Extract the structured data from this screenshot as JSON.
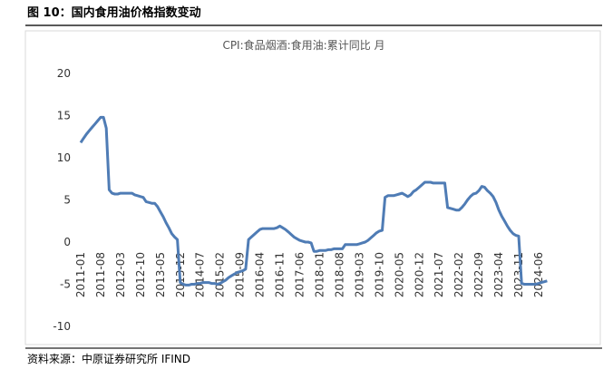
{
  "header": {
    "title": "图 10：国内食用油价格指数变动"
  },
  "source": "资料来源：中原证券研究所 IFIND",
  "chart_data": {
    "type": "line",
    "title": "CPI:食品烟酒:食用油:累计同比 月",
    "categories": [
      "2011-01",
      null,
      null,
      null,
      null,
      null,
      null,
      "2011-08",
      null,
      null,
      null,
      null,
      null,
      null,
      "2012-03",
      null,
      null,
      null,
      null,
      null,
      null,
      "2012-10",
      null,
      null,
      null,
      null,
      null,
      null,
      "2013-05",
      null,
      null,
      null,
      null,
      null,
      null,
      "2013-12",
      null,
      null,
      null,
      null,
      null,
      null,
      "2014-07",
      null,
      null,
      null,
      null,
      null,
      null,
      "2015-02",
      null,
      null,
      null,
      null,
      null,
      null,
      "2015-09",
      null,
      null,
      null,
      null,
      null,
      null,
      "2016-04",
      null,
      null,
      null,
      null,
      null,
      null,
      "2016-11",
      null,
      null,
      null,
      null,
      null,
      null,
      "2017-06",
      null,
      null,
      null,
      null,
      null,
      null,
      "2018-01",
      null,
      null,
      null,
      null,
      null,
      null,
      "2018-08",
      null,
      null,
      null,
      null,
      null,
      null,
      "2019-03",
      null,
      null,
      null,
      null,
      null,
      null,
      "2019-10",
      null,
      null,
      null,
      null,
      null,
      null,
      "2020-05",
      null,
      null,
      null,
      null,
      null,
      null,
      "2020-12",
      null,
      null,
      null,
      null,
      null,
      null,
      "2021-07",
      null,
      null,
      null,
      null,
      null,
      null,
      "2022-02",
      null,
      null,
      null,
      null,
      null,
      null,
      "2022-09",
      null,
      null,
      null,
      null,
      null,
      null,
      "2023-04",
      null,
      null,
      null,
      null,
      null,
      null,
      "2023-11",
      null,
      null,
      null,
      null,
      null,
      null,
      "2024-06",
      null,
      null,
      null
    ],
    "series": [
      {
        "color": "#4f7cb5",
        "values": [
          11.8,
          12.3,
          12.8,
          13.2,
          13.6,
          14.0,
          14.4,
          14.8,
          14.8,
          13.5,
          6.2,
          5.8,
          5.7,
          5.7,
          5.8,
          5.8,
          5.8,
          5.8,
          5.8,
          5.6,
          5.5,
          5.4,
          5.3,
          4.8,
          4.7,
          4.6,
          4.6,
          4.2,
          3.6,
          3.0,
          2.3,
          1.7,
          1.0,
          0.6,
          0.3,
          -4.8,
          -5.0,
          -5.1,
          -5.1,
          -5.0,
          -5.0,
          -4.9,
          -4.9,
          -4.8,
          -4.8,
          -4.8,
          -4.9,
          -4.9,
          -5.0,
          -4.9,
          -4.7,
          -4.5,
          -4.2,
          -4.0,
          -3.8,
          -3.6,
          -3.5,
          -3.4,
          -3.2,
          0.3,
          0.6,
          0.9,
          1.2,
          1.5,
          1.6,
          1.6,
          1.6,
          1.6,
          1.6,
          1.7,
          1.9,
          1.7,
          1.5,
          1.2,
          0.9,
          0.6,
          0.4,
          0.2,
          0.1,
          0.0,
          0.0,
          -0.1,
          -1.1,
          -1.1,
          -1.0,
          -1.0,
          -1.0,
          -0.9,
          -0.9,
          -0.8,
          -0.8,
          -0.8,
          -0.8,
          -0.3,
          -0.3,
          -0.3,
          -0.3,
          -0.3,
          -0.2,
          -0.1,
          0.0,
          0.2,
          0.5,
          0.8,
          1.1,
          1.3,
          1.4,
          5.3,
          5.5,
          5.5,
          5.5,
          5.6,
          5.7,
          5.8,
          5.6,
          5.4,
          5.6,
          6.0,
          6.2,
          6.5,
          6.8,
          7.1,
          7.1,
          7.1,
          7.0,
          7.0,
          7.0,
          7.0,
          7.0,
          4.1,
          4.0,
          3.9,
          3.8,
          3.8,
          4.1,
          4.5,
          5.0,
          5.4,
          5.7,
          5.8,
          6.1,
          6.6,
          6.5,
          6.1,
          5.8,
          5.4,
          4.7,
          3.8,
          3.1,
          2.5,
          1.9,
          1.4,
          1.0,
          0.8,
          0.7,
          -4.9,
          -5.0,
          -5.0,
          -5.0,
          -5.0,
          -5.0,
          -4.9,
          -4.8,
          -4.7,
          -4.6
        ]
      }
    ],
    "ylim": [
      -10,
      20
    ],
    "yticks": [
      -10,
      -5,
      0,
      5,
      10,
      15,
      20
    ],
    "grid": false
  }
}
